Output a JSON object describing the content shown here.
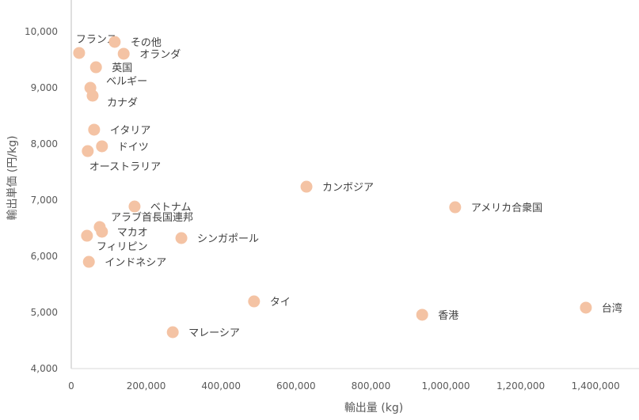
{
  "chart_data": {
    "type": "scatter",
    "title": "",
    "xlabel": "輸出量 (kg)",
    "ylabel": "輸出単価 (円/kg)",
    "xlim": [
      0,
      1500000
    ],
    "ylim": [
      4000,
      10500
    ],
    "xticks": [
      0,
      200000,
      400000,
      600000,
      800000,
      1000000,
      1200000,
      1400000
    ],
    "xtick_labels": [
      "0",
      "200,000",
      "400,000",
      "600,000",
      "800,000",
      "1,000,000",
      "1,200,000",
      "1,400,000"
    ],
    "yticks": [
      4000,
      5000,
      6000,
      7000,
      8000,
      9000,
      10000
    ],
    "ytick_labels": [
      "4,000",
      "5,000",
      "6,000",
      "7,000",
      "8,000",
      "9,000",
      "10,000"
    ],
    "grid": false,
    "marker_color": "#F4C3A4",
    "points": [
      {
        "label": "フランス",
        "x": 21000,
        "y": 9620
      },
      {
        "label": "その他",
        "x": 116000,
        "y": 9817
      },
      {
        "label": "オランダ",
        "x": 140000,
        "y": 9606
      },
      {
        "label": "英国",
        "x": 66000,
        "y": 9366
      },
      {
        "label": "ベルギー",
        "x": 51000,
        "y": 9000
      },
      {
        "label": "カナダ",
        "x": 57000,
        "y": 8859
      },
      {
        "label": "イタリア",
        "x": 61000,
        "y": 8254
      },
      {
        "label": "ドイツ",
        "x": 82000,
        "y": 7958
      },
      {
        "label": "オーストラリア",
        "x": 44000,
        "y": 7873
      },
      {
        "label": "カンボジア",
        "x": 628000,
        "y": 7239
      },
      {
        "label": "ベトナム",
        "x": 169000,
        "y": 6887
      },
      {
        "label": "アメリカ合衆国",
        "x": 1025000,
        "y": 6873
      },
      {
        "label": "アラブ首長国連邦",
        "x": 76000,
        "y": 6521
      },
      {
        "label": "マカオ",
        "x": 82000,
        "y": 6437
      },
      {
        "label": "フィリピン",
        "x": 42000,
        "y": 6366
      },
      {
        "label": "シンガポール",
        "x": 294000,
        "y": 6324
      },
      {
        "label": "インドネシア",
        "x": 47000,
        "y": 5901
      },
      {
        "label": "タイ",
        "x": 488000,
        "y": 5197
      },
      {
        "label": "香港",
        "x": 937000,
        "y": 4958
      },
      {
        "label": "台湾",
        "x": 1374000,
        "y": 5085
      },
      {
        "label": "マレーシア",
        "x": 271000,
        "y": 4648
      }
    ]
  }
}
